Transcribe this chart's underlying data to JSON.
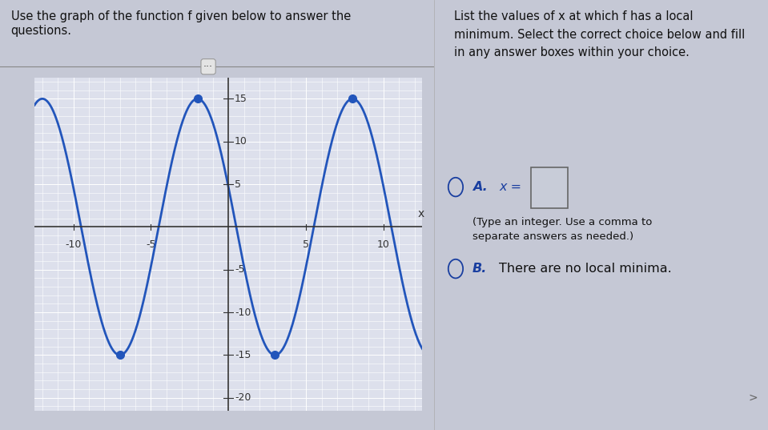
{
  "title_left": "Use the graph of the function f given below to answer the\nquestions.",
  "title_right": "List the values of x at which f has a local\nminimum. Select the correct choice below and fill\nin any answer boxes within your choice.",
  "choice_A_label": "A.",
  "choice_A_eq": "x = ",
  "choice_A_sub": "(Type an integer. Use a comma to\nseparate answers as needed.)",
  "choice_B_label": "B.",
  "choice_B_text": "There are no local minima.",
  "graph_xlim": [
    -12.5,
    12.5
  ],
  "graph_ylim": [
    -21.5,
    17.5
  ],
  "xtick_vals": [
    -10,
    -5,
    5,
    10
  ],
  "ytick_vals": [
    -20,
    -15,
    -10,
    -5,
    5,
    10,
    15
  ],
  "curve_color": "#2255bb",
  "dot_color": "#2255bb",
  "dot_points": [
    [
      -7,
      -15
    ],
    [
      -2,
      15
    ],
    [
      3,
      -15
    ],
    [
      8,
      15
    ]
  ],
  "amplitude": 15,
  "period": 10,
  "phase_max": -2,
  "graph_bg": "#dde0ec",
  "grid_color_major": "#ffffff",
  "grid_color_minor": "#d0d3e0",
  "axis_line_color": "#333333",
  "text_color": "#111111",
  "blue_text": "#1a3fa0",
  "fig_bg": "#c5c8d5",
  "toolbar_bg": "#e8e8e8",
  "toolbar_border": "#aaaaaa",
  "answer_box_bg": "#c8ccd8",
  "answer_box_border": "#666666"
}
